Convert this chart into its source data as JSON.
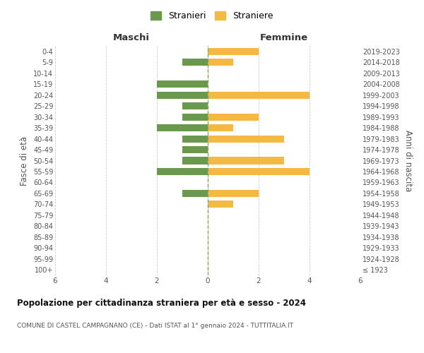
{
  "age_groups": [
    "100+",
    "95-99",
    "90-94",
    "85-89",
    "80-84",
    "75-79",
    "70-74",
    "65-69",
    "60-64",
    "55-59",
    "50-54",
    "45-49",
    "40-44",
    "35-39",
    "30-34",
    "25-29",
    "20-24",
    "15-19",
    "10-14",
    "5-9",
    "0-4"
  ],
  "birth_years": [
    "≤ 1923",
    "1924-1928",
    "1929-1933",
    "1934-1938",
    "1939-1943",
    "1944-1948",
    "1949-1953",
    "1954-1958",
    "1959-1963",
    "1964-1968",
    "1969-1973",
    "1974-1978",
    "1979-1983",
    "1984-1988",
    "1989-1993",
    "1994-1998",
    "1999-2003",
    "2004-2008",
    "2009-2013",
    "2014-2018",
    "2019-2023"
  ],
  "males": [
    0,
    0,
    0,
    0,
    0,
    0,
    0,
    1,
    0,
    2,
    1,
    1,
    1,
    2,
    1,
    1,
    2,
    2,
    0,
    1,
    0
  ],
  "females": [
    0,
    0,
    0,
    0,
    0,
    0,
    1,
    2,
    0,
    4,
    3,
    0,
    3,
    1,
    2,
    0,
    4,
    0,
    0,
    1,
    2
  ],
  "male_color": "#6a994e",
  "female_color": "#f4b942",
  "male_label": "Stranieri",
  "female_label": "Straniere",
  "title": "Popolazione per cittadinanza straniera per età e sesso - 2024",
  "subtitle": "COMUNE DI CASTEL CAMPAGNANO (CE) - Dati ISTAT al 1° gennaio 2024 - TUTTITALIA.IT",
  "xlabel_left": "Maschi",
  "xlabel_right": "Femmine",
  "ylabel_left": "Fasce di età",
  "ylabel_right": "Anni di nascita",
  "xlim": 6,
  "background_color": "#ffffff",
  "grid_color": "#cccccc"
}
